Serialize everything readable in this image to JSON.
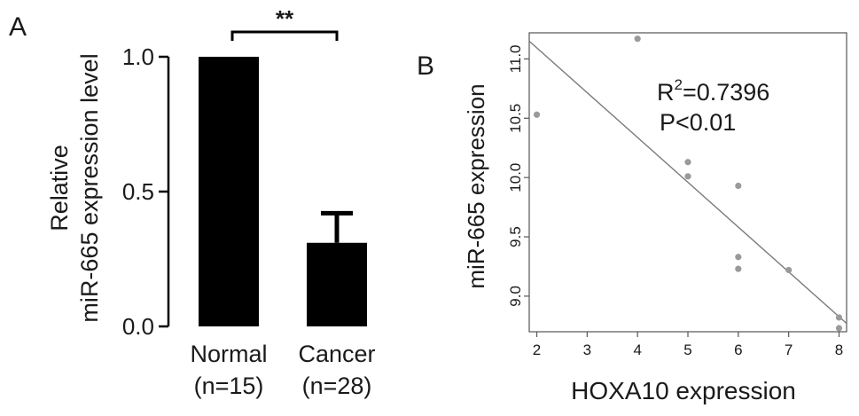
{
  "panel_a": {
    "letter": "A",
    "ylabel_line1": "Relative",
    "ylabel_line2": "miR-665 expression level",
    "significance": "**"
  },
  "panel_b": {
    "letter": "B",
    "r2_base": "R",
    "r2_sup": "2",
    "r2_value": "=0.7396",
    "p_text": "P<0.01"
  },
  "chart_data": [
    {
      "type": "bar",
      "categories": [
        "Normal",
        "Cancer"
      ],
      "category_sublabels": [
        "(n=15)",
        "(n=28)"
      ],
      "values": [
        1.0,
        0.31
      ],
      "error_upper": [
        0.0,
        0.42
      ],
      "ylabel": "Relative miR-665 expression level",
      "ylim": [
        0,
        1.0
      ],
      "yticks": [
        "0.0",
        "0.5",
        "1.0"
      ],
      "bar_color": "#000000",
      "annotation": "**"
    },
    {
      "type": "scatter",
      "xlabel": "HOXA10 expression",
      "ylabel": "miR-665 expression",
      "xlim": [
        1.85,
        8.15
      ],
      "ylim": [
        8.7,
        11.22
      ],
      "xticks": [
        "2",
        "3",
        "4",
        "5",
        "6",
        "7",
        "8"
      ],
      "yticks": [
        "9.0",
        "9.5",
        "10.0",
        "10.5",
        "11.0"
      ],
      "points": [
        [
          2,
          10.53
        ],
        [
          4,
          11.17
        ],
        [
          5,
          10.13
        ],
        [
          5,
          10.01
        ],
        [
          6,
          9.93
        ],
        [
          6,
          9.33
        ],
        [
          6,
          9.23
        ],
        [
          7,
          9.22
        ],
        [
          8,
          8.82
        ],
        [
          8,
          8.73
        ]
      ],
      "fit_line": {
        "x": [
          1.85,
          8.15
        ],
        "y": [
          11.15,
          8.77
        ]
      },
      "point_color": "#9a9a9a",
      "line_color": "#7a7a7a",
      "annotations": [
        "R2=0.7396",
        "P<0.01"
      ]
    }
  ]
}
